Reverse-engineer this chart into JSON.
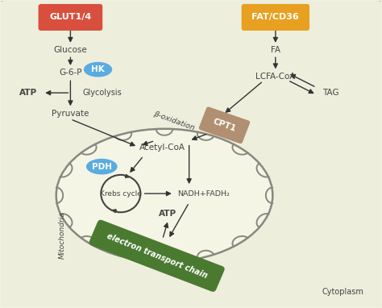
{
  "fig_width": 4.74,
  "fig_height": 3.82,
  "dpi": 100,
  "bg_color": "#f2f2e0",
  "outer_box_color": "#eeeedd",
  "outer_box_edge": "#ccccaa",
  "glut_color": "#d94f3d",
  "fat_color": "#e8a020",
  "hk_color": "#5aabe0",
  "pdh_color": "#5aabe0",
  "cpti_color": "#b09070",
  "etc_color": "#4a7a30",
  "mito_fill": "#f5f5e5",
  "mito_outline": "#888880",
  "arrow_color": "#333333",
  "text_color": "#444444",
  "cytoplasm_label": "Cytoplasm",
  "mito_label": "Mitochondria",
  "krebs_label": "Krebs cycle",
  "etc_label": "electron transport chain",
  "glut_label": "GLUT1/4",
  "fat_label": "FAT/CD36",
  "hk_label": "HK",
  "pdh_label": "PDH",
  "cpti_label": "CPT1",
  "glucose_label": "Glucose",
  "g6p_label": "G-6-P",
  "glycolysis_label": "Glycolysis",
  "atp_label1": "ATP",
  "pyruvate_label": "Pyruvate",
  "acetylcoa_label": "Acetyl-CoA",
  "beta_label": "β-oxidation",
  "nadh_label": "NADH+FADH₂",
  "atp_label2": "ATP",
  "fa_label": "FA",
  "lcfacoa_label": "LCFA-CoA",
  "tag_label": "TAG"
}
